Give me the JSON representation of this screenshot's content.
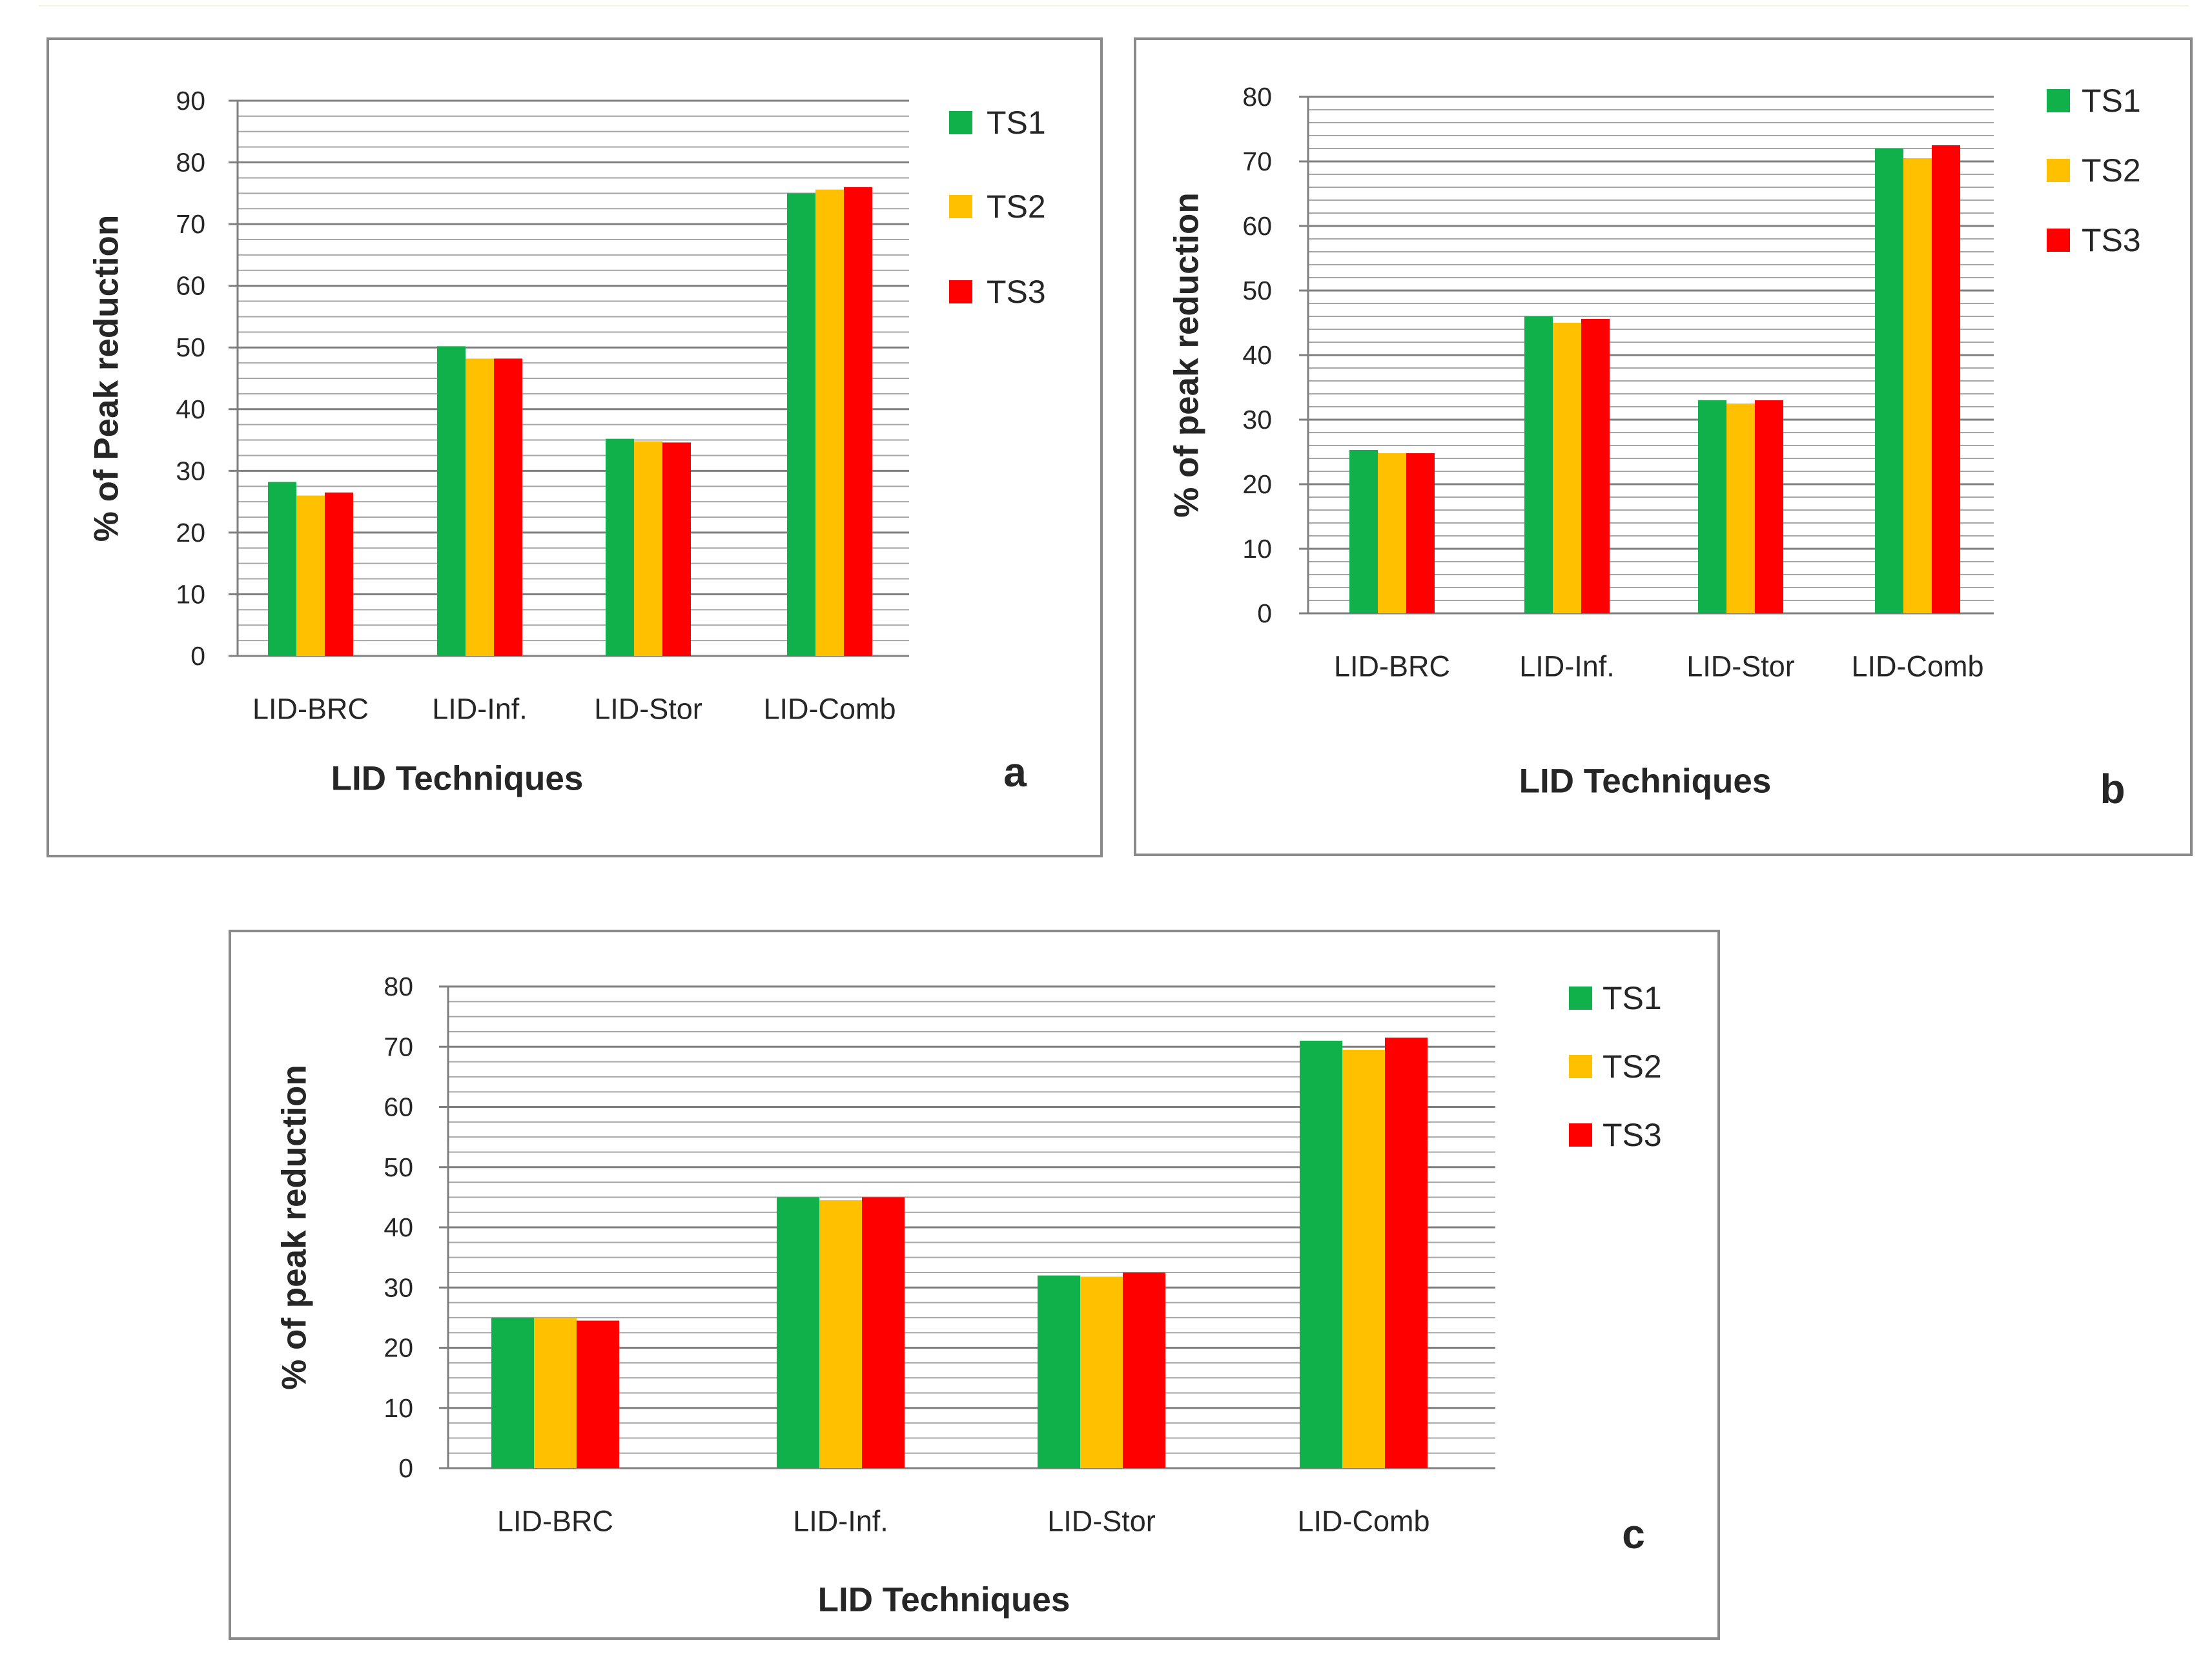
{
  "colors": {
    "TS1": "#10b14b",
    "TS2": "#ffc000",
    "TS3": "#ff0000"
  },
  "chart_data": [
    {
      "type": "bar",
      "panel_label": "a",
      "title": "",
      "xlabel": "LID Techniques",
      "ylabel": "% of Peak reduction",
      "ylim": [
        0,
        90
      ],
      "yticks": [
        "0",
        "10",
        "20",
        "30",
        "40",
        "50",
        "60",
        "70",
        "80",
        "90"
      ],
      "categories": [
        "LID-BRC",
        "LID-Inf.",
        "LID-Stor",
        "LID-Comb"
      ],
      "series": [
        {
          "name": "TS1",
          "values": [
            28.2,
            50.2,
            35.2,
            75.0
          ]
        },
        {
          "name": "TS2",
          "values": [
            26.0,
            48.2,
            34.8,
            75.6
          ]
        },
        {
          "name": "TS3",
          "values": [
            26.5,
            48.2,
            34.6,
            76.0
          ]
        }
      ],
      "grid": true,
      "legend": "right"
    },
    {
      "type": "bar",
      "panel_label": "b",
      "title": "",
      "xlabel": "LID Techniques",
      "ylabel": "% of peak reduction",
      "ylim": [
        0,
        80
      ],
      "yticks": [
        "0",
        "10",
        "20",
        "30",
        "40",
        "50",
        "60",
        "70",
        "80"
      ],
      "categories": [
        "LID-BRC",
        "LID-Inf.",
        "LID-Stor",
        "LID-Comb"
      ],
      "series": [
        {
          "name": "TS1",
          "values": [
            25.3,
            46.0,
            33.0,
            72.0
          ]
        },
        {
          "name": "TS2",
          "values": [
            24.8,
            45.0,
            32.5,
            70.5
          ]
        },
        {
          "name": "TS3",
          "values": [
            24.8,
            45.6,
            33.0,
            72.5
          ]
        }
      ],
      "grid": true,
      "legend": "right"
    },
    {
      "type": "bar",
      "panel_label": "c",
      "title": "",
      "xlabel": "LID Techniques",
      "ylabel": "% of peak reduction",
      "ylim": [
        0,
        80
      ],
      "yticks": [
        "0",
        "10",
        "20",
        "30",
        "40",
        "50",
        "60",
        "70",
        "80"
      ],
      "categories": [
        "LID-BRC",
        "LID-Inf.",
        "LID-Stor",
        "LID-Comb"
      ],
      "series": [
        {
          "name": "TS1",
          "values": [
            25.0,
            45.0,
            32.0,
            71.0
          ]
        },
        {
          "name": "TS2",
          "values": [
            25.0,
            44.5,
            31.8,
            69.5
          ]
        },
        {
          "name": "TS3",
          "values": [
            24.5,
            45.0,
            32.5,
            71.5
          ]
        }
      ],
      "grid": true,
      "legend": "right"
    }
  ]
}
